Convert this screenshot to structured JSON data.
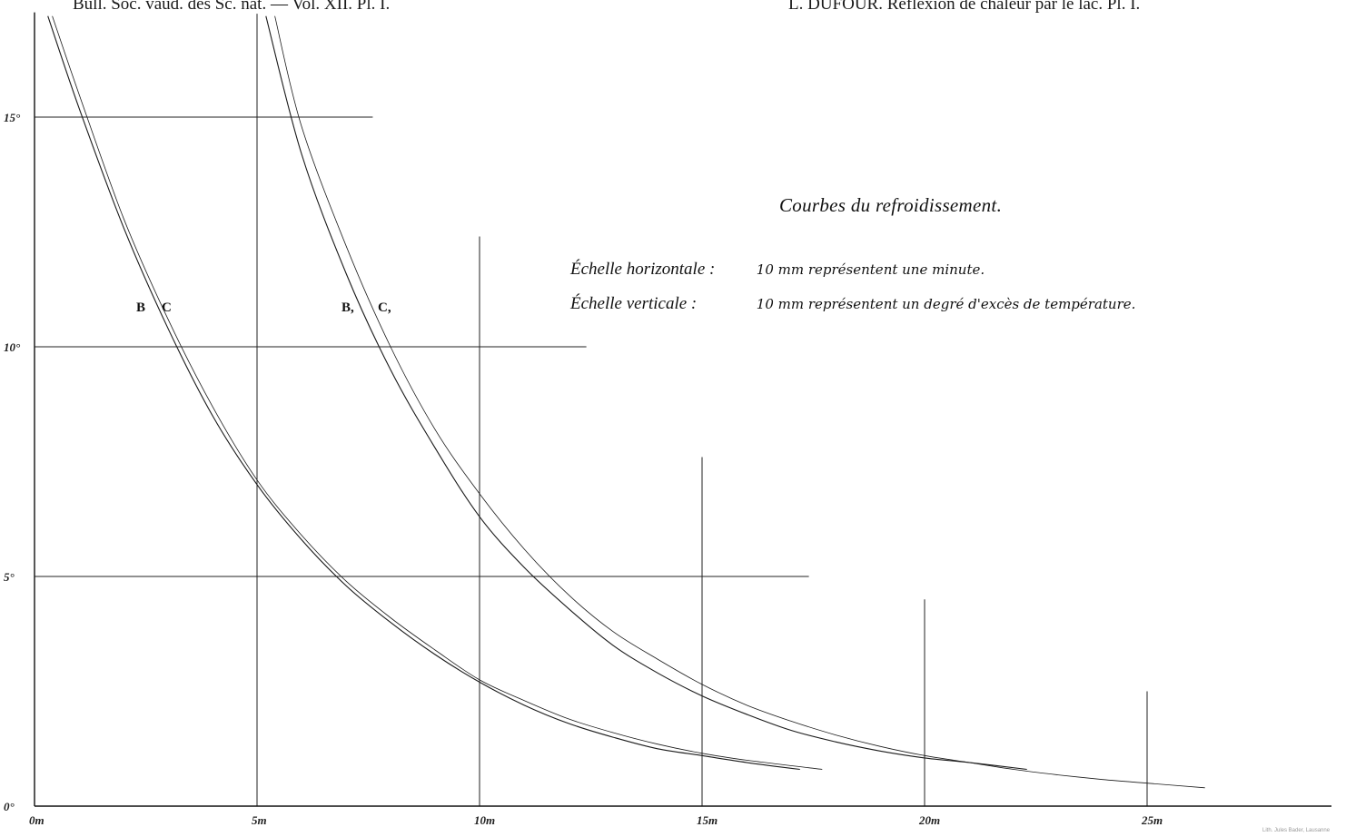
{
  "header": {
    "left": "Bull. Soc. vaud. des Sc. nat. — Vol. XII. Pl. I.",
    "right": "L. DUFOUR. Réflexion de chaleur par le lac. Pl. I."
  },
  "chart_data": {
    "type": "line",
    "title": "Courbes du refroidissement.",
    "scale_notes": [
      {
        "label": "Échelle horizontale :",
        "text": "10 mm représentent une minute."
      },
      {
        "label": "Échelle verticale :",
        "text": "10 mm représentent un degré d'excès de température."
      }
    ],
    "xlim": [
      0,
      29
    ],
    "ylim": [
      0,
      17.2
    ],
    "x_ticks": [
      0,
      5,
      10,
      15,
      20,
      25
    ],
    "x_tick_labels": [
      "0m",
      "5m",
      "10m",
      "15m",
      "20m",
      "25m"
    ],
    "y_ticks": [
      0,
      5,
      10,
      15
    ],
    "y_tick_labels": [
      "0°",
      "5°",
      "10°",
      "15°"
    ],
    "series": [
      {
        "name": "B",
        "x": [
          0.3,
          1,
          2,
          3,
          4,
          5,
          6,
          7,
          8,
          9,
          10,
          11,
          12,
          13,
          14,
          15,
          16,
          17.2
        ],
        "y": [
          17.2,
          15.2,
          12.6,
          10.4,
          8.5,
          7.0,
          5.8,
          4.8,
          4.0,
          3.3,
          2.7,
          2.2,
          1.8,
          1.5,
          1.25,
          1.1,
          0.95,
          0.8
        ]
      },
      {
        "name": "C",
        "x": [
          0.4,
          1,
          2,
          3,
          4,
          5,
          6,
          7,
          8,
          9,
          10,
          11,
          12,
          13,
          14,
          15,
          16,
          17.7
        ],
        "y": [
          17.2,
          15.5,
          12.8,
          10.6,
          8.7,
          7.1,
          5.9,
          4.9,
          4.1,
          3.4,
          2.75,
          2.3,
          1.9,
          1.6,
          1.35,
          1.15,
          1.0,
          0.8
        ]
      },
      {
        "name": "B,",
        "x": [
          5.2,
          6,
          7,
          8,
          9,
          10,
          11,
          12,
          13,
          14,
          15,
          16,
          17,
          18,
          19,
          20,
          21,
          22.3
        ],
        "y": [
          17.2,
          14.2,
          11.6,
          9.5,
          7.8,
          6.3,
          5.2,
          4.3,
          3.5,
          2.9,
          2.4,
          2.0,
          1.65,
          1.4,
          1.2,
          1.05,
          0.95,
          0.8
        ]
      },
      {
        "name": "C,",
        "x": [
          5.4,
          6,
          7,
          8,
          9,
          10,
          11,
          12,
          13,
          14,
          15,
          16,
          17,
          18,
          19,
          20,
          21,
          22,
          23,
          24,
          25,
          26.3
        ],
        "y": [
          17.2,
          14.8,
          12.2,
          10.0,
          8.2,
          6.8,
          5.6,
          4.6,
          3.8,
          3.2,
          2.65,
          2.2,
          1.85,
          1.55,
          1.3,
          1.1,
          0.95,
          0.8,
          0.68,
          0.58,
          0.5,
          0.4
        ]
      }
    ],
    "series_labels": [
      "B",
      "C",
      "B,",
      "C,"
    ],
    "grid": true
  },
  "credit": "Lith. Jules Bader, Lausanne"
}
